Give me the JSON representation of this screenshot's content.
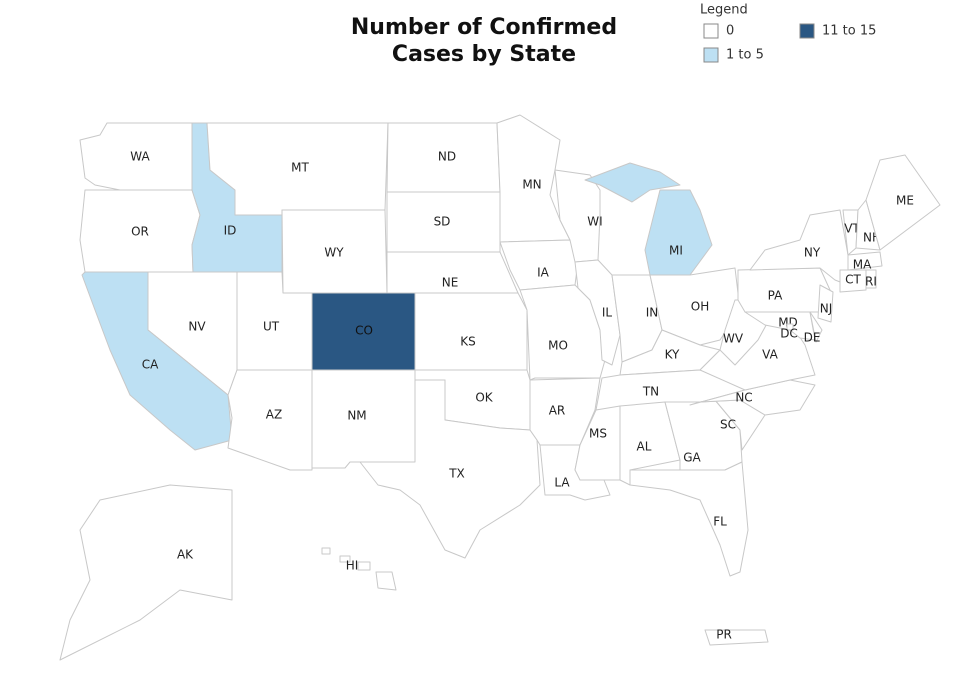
{
  "title": "Number of Confirmed Cases by State",
  "legend": {
    "title": "Legend",
    "items": [
      {
        "label": "0",
        "color": "#ffffff"
      },
      {
        "label": "1 to 5",
        "color": "#bde0f3"
      },
      {
        "label": "11 to 15",
        "color": "#2a5783"
      }
    ]
  },
  "states": [
    {
      "abbr": "WA",
      "range": "0"
    },
    {
      "abbr": "OR",
      "range": "0"
    },
    {
      "abbr": "ID",
      "range": "1 to 5"
    },
    {
      "abbr": "MT",
      "range": "0"
    },
    {
      "abbr": "WY",
      "range": "0"
    },
    {
      "abbr": "ND",
      "range": "0"
    },
    {
      "abbr": "SD",
      "range": "0"
    },
    {
      "abbr": "NE",
      "range": "0"
    },
    {
      "abbr": "KS",
      "range": "0"
    },
    {
      "abbr": "CO",
      "range": "11 to 15"
    },
    {
      "abbr": "UT",
      "range": "0"
    },
    {
      "abbr": "NV",
      "range": "0"
    },
    {
      "abbr": "CA",
      "range": "1 to 5"
    },
    {
      "abbr": "AZ",
      "range": "0"
    },
    {
      "abbr": "NM",
      "range": "0"
    },
    {
      "abbr": "OK",
      "range": "0"
    },
    {
      "abbr": "TX",
      "range": "0"
    },
    {
      "abbr": "MN",
      "range": "0"
    },
    {
      "abbr": "IA",
      "range": "0"
    },
    {
      "abbr": "MO",
      "range": "0"
    },
    {
      "abbr": "AR",
      "range": "0"
    },
    {
      "abbr": "LA",
      "range": "0"
    },
    {
      "abbr": "WI",
      "range": "0"
    },
    {
      "abbr": "IL",
      "range": "0"
    },
    {
      "abbr": "MI",
      "range": "1 to 5"
    },
    {
      "abbr": "IN",
      "range": "0"
    },
    {
      "abbr": "OH",
      "range": "0"
    },
    {
      "abbr": "KY",
      "range": "0"
    },
    {
      "abbr": "TN",
      "range": "0"
    },
    {
      "abbr": "MS",
      "range": "0"
    },
    {
      "abbr": "AL",
      "range": "0"
    },
    {
      "abbr": "GA",
      "range": "0"
    },
    {
      "abbr": "FL",
      "range": "0"
    },
    {
      "abbr": "SC",
      "range": "0"
    },
    {
      "abbr": "NC",
      "range": "0"
    },
    {
      "abbr": "VA",
      "range": "0"
    },
    {
      "abbr": "WV",
      "range": "0"
    },
    {
      "abbr": "PA",
      "range": "0"
    },
    {
      "abbr": "NY",
      "range": "0"
    },
    {
      "abbr": "NJ",
      "range": "0"
    },
    {
      "abbr": "MD",
      "range": "0"
    },
    {
      "abbr": "DE",
      "range": "0"
    },
    {
      "abbr": "DC",
      "range": "0"
    },
    {
      "abbr": "VT",
      "range": "0"
    },
    {
      "abbr": "NH",
      "range": "0"
    },
    {
      "abbr": "ME",
      "range": "0"
    },
    {
      "abbr": "MA",
      "range": "0"
    },
    {
      "abbr": "CT",
      "range": "0"
    },
    {
      "abbr": "RI",
      "range": "0"
    },
    {
      "abbr": "AK",
      "range": "0"
    },
    {
      "abbr": "HI",
      "range": "0"
    },
    {
      "abbr": "PR",
      "range": "0"
    }
  ]
}
